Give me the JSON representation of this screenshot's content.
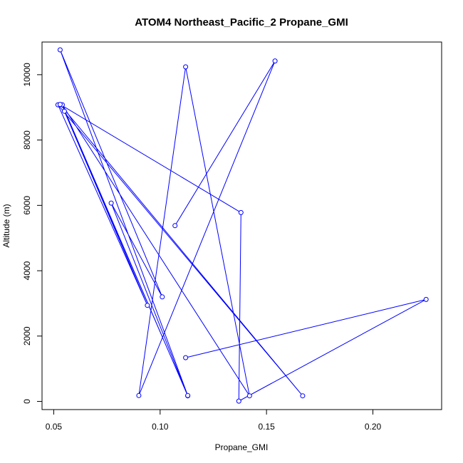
{
  "chart_data": {
    "type": "line",
    "title": "ATOM4 Northeast_Pacific_2 Propane_GMI",
    "xlabel": "Propane_GMI",
    "ylabel": "Altitude (m)",
    "xlim": [
      0.0445,
      0.2323
    ],
    "ylim": [
      -250,
      11000
    ],
    "x_ticks": [
      0.05,
      0.1,
      0.15,
      0.2
    ],
    "x_tick_labels": [
      "0.05",
      "0.10",
      "0.15",
      "0.20"
    ],
    "y_ticks": [
      0,
      2000,
      4000,
      6000,
      8000,
      10000
    ],
    "y_tick_labels": [
      "0",
      "2000",
      "4000",
      "6000",
      "8000",
      "10000"
    ],
    "grid": false,
    "series": [
      {
        "color": "#0000ff",
        "marker": "open-circle",
        "x": [
          0.107,
          0.154,
          0.09,
          0.112,
          0.142,
          0.054,
          0.113,
          0.077,
          0.101,
          0.053,
          0.113,
          0.055,
          0.094,
          0.052,
          0.167,
          0.053,
          0.138,
          0.137,
          0.225,
          0.112
        ],
        "y": [
          5380,
          10420,
          180,
          10240,
          170,
          9080,
          170,
          6070,
          3200,
          10760,
          180,
          8880,
          2940,
          9080,
          170,
          9090,
          5780,
          10,
          3120,
          1340
        ]
      }
    ]
  }
}
